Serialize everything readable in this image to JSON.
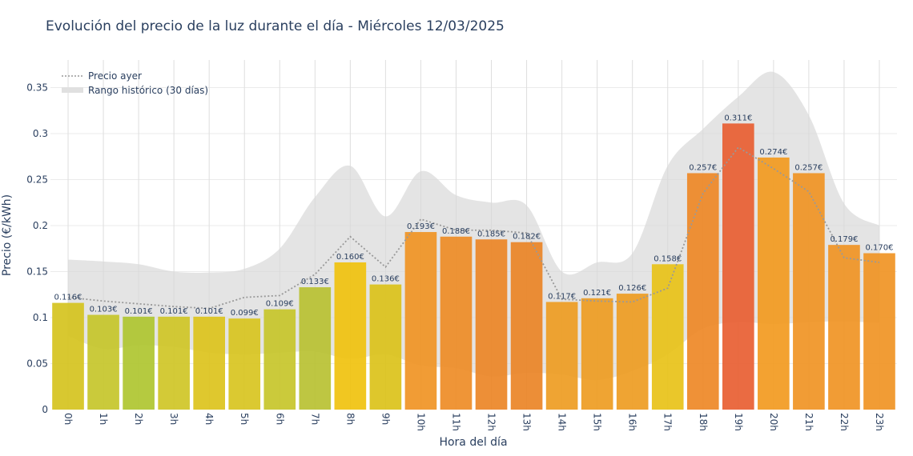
{
  "chart_data": {
    "type": "bar",
    "title": "Evolución del precio de la luz durante el día - Miércoles 12/03/2025",
    "xlabel": "Hora del día",
    "ylabel": "Precio (€/kWh)",
    "ylim": [
      0,
      0.38
    ],
    "yticks": [
      0,
      0.05,
      0.1,
      0.15,
      0.2,
      0.25,
      0.3,
      0.35
    ],
    "ytick_labels": [
      "0",
      "0.05",
      "0.1",
      "0.15",
      "0.2",
      "0.25",
      "0.3",
      "0.35"
    ],
    "grid": true,
    "legend_position": "top-left",
    "categories": [
      "0h",
      "1h",
      "2h",
      "3h",
      "4h",
      "5h",
      "6h",
      "7h",
      "8h",
      "9h",
      "10h",
      "11h",
      "12h",
      "13h",
      "14h",
      "15h",
      "16h",
      "17h",
      "18h",
      "19h",
      "20h",
      "21h",
      "22h",
      "23h"
    ],
    "values": [
      0.116,
      0.103,
      0.101,
      0.101,
      0.101,
      0.099,
      0.109,
      0.133,
      0.16,
      0.136,
      0.193,
      0.188,
      0.185,
      0.182,
      0.117,
      0.121,
      0.126,
      0.158,
      0.257,
      0.311,
      0.274,
      0.257,
      0.179,
      0.17
    ],
    "labels": [
      "0.116€",
      "0.103€",
      "0.101€",
      "0.101€",
      "0.101€",
      "0.099€",
      "0.109€",
      "0.133€",
      "0.160€",
      "0.136€",
      "0.193€",
      "0.188€",
      "0.185€",
      "0.182€",
      "0.117€",
      "0.121€",
      "0.126€",
      "0.158€",
      "0.257€",
      "0.311€",
      "0.274€",
      "0.257€",
      "0.179€",
      "0.170€"
    ],
    "bar_colors": [
      "#d5c31e",
      "#c5c52a",
      "#afc530",
      "#cfc526",
      "#dcc31c",
      "#d8c420",
      "#c7c52a",
      "#b8c132",
      "#f0c20e",
      "#dbc21a",
      "#f09424",
      "#ee8c26",
      "#ec8526",
      "#ea8426",
      "#ee9c22",
      "#ee9c22",
      "#ee9c22",
      "#e8c218",
      "#ee8826",
      "#e85e32",
      "#f29a20",
      "#f09424",
      "#f09424",
      "#f09424"
    ],
    "series": [
      {
        "name": "Precio ayer",
        "type": "line",
        "style": "dotted",
        "color": "#999999",
        "values": [
          0.122,
          0.118,
          0.115,
          0.112,
          0.11,
          0.122,
          0.124,
          0.147,
          0.188,
          0.155,
          0.207,
          0.195,
          0.195,
          0.192,
          0.12,
          0.118,
          0.117,
          0.132,
          0.235,
          0.285,
          0.262,
          0.237,
          0.165,
          0.16
        ]
      },
      {
        "name": "Rango histórico (30 días)",
        "type": "band",
        "color": "#d9d9d9",
        "upper": [
          0.163,
          0.161,
          0.158,
          0.15,
          0.149,
          0.153,
          0.175,
          0.231,
          0.265,
          0.21,
          0.259,
          0.233,
          0.225,
          0.222,
          0.15,
          0.16,
          0.17,
          0.265,
          0.305,
          0.34,
          0.367,
          0.32,
          0.224,
          0.2
        ],
        "lower": [
          0.08,
          0.066,
          0.07,
          0.068,
          0.062,
          0.06,
          0.062,
          0.063,
          0.055,
          0.06,
          0.048,
          0.045,
          0.036,
          0.04,
          0.038,
          0.032,
          0.042,
          0.06,
          0.088,
          0.095,
          0.093,
          0.095,
          0.096,
          0.094
        ]
      }
    ]
  }
}
